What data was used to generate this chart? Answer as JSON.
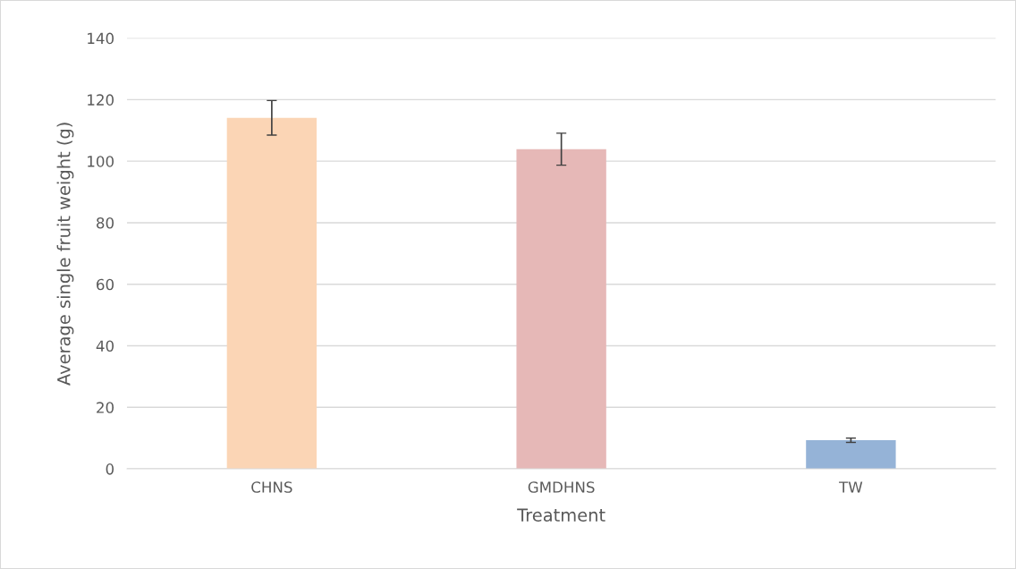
{
  "chart_data": {
    "type": "bar",
    "xlabel": "Treatment",
    "ylabel": "Average single fruit weight (g)",
    "categories": [
      "CHNS",
      "GMDHNS",
      "TW"
    ],
    "values": [
      114.1,
      103.9,
      9.3
    ],
    "errors": [
      5.6,
      5.2,
      0.7
    ],
    "colors": [
      "#fbd5b5",
      "#e6b8b7",
      "#95b3d7"
    ],
    "ylim": [
      0,
      140
    ],
    "yticks": [
      0,
      20,
      40,
      60,
      80,
      100,
      120,
      140
    ],
    "grid": "y"
  }
}
